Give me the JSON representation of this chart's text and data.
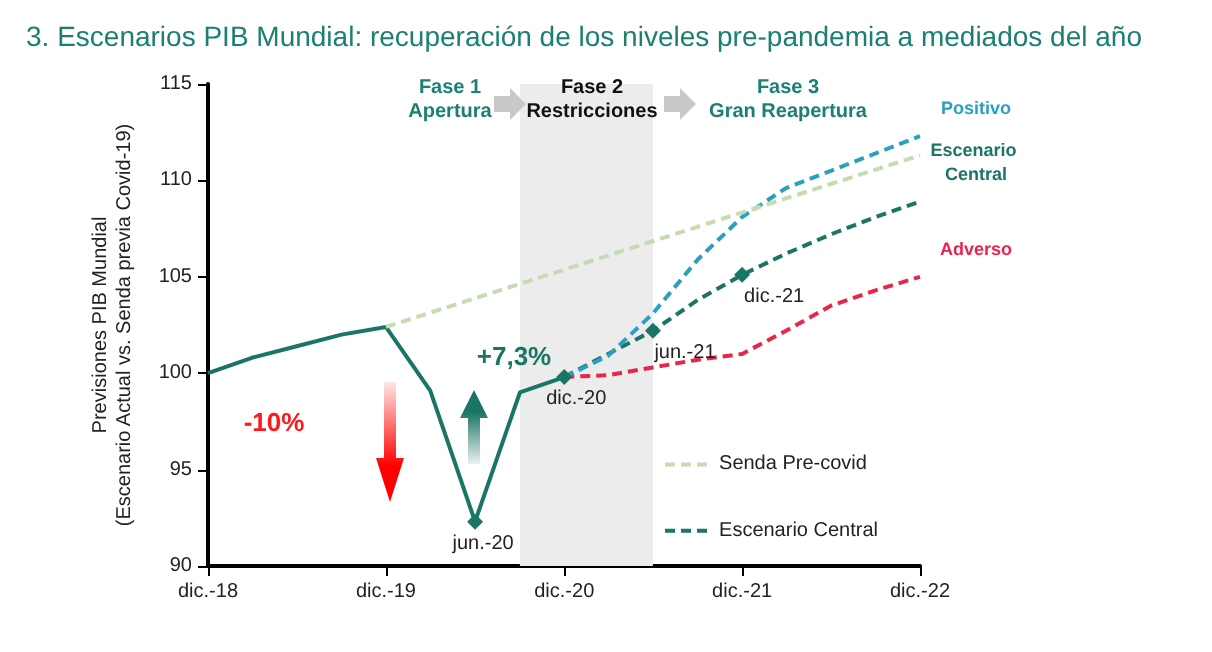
{
  "chart_data": {
    "type": "line",
    "title": "3. Escenarios PIB Mundial: recuperación de los niveles pre-pandemia a mediados del año",
    "ylabel": "Previsiones PIB Mundial\n(Escenario Actual vs. Senda previa Covid-19)",
    "xlim": [
      "2018-12",
      "2022-12"
    ],
    "xticks": [
      {
        "value": "2018-12",
        "label": "dic.-18"
      },
      {
        "value": "2019-12",
        "label": "dic.-19"
      },
      {
        "value": "2020-12",
        "label": "dic.-20"
      },
      {
        "value": "2021-12",
        "label": "dic.-21"
      },
      {
        "value": "2022-12",
        "label": "dic.-22"
      }
    ],
    "ylim": [
      90,
      115
    ],
    "yticks": [
      90,
      95,
      100,
      105,
      110,
      115
    ],
    "grid": false,
    "marker": "none",
    "legend": "bottom right",
    "series": [
      {
        "name": "Senda Pre-covid",
        "color": "#c5dcb0",
        "line_style": "dashed",
        "x": [
          "2019-12",
          "2022-12"
        ],
        "values": [
          102.4,
          111.3
        ]
      },
      {
        "color": "#1a7565",
        "line_style": "solid",
        "x": [
          "2018-12",
          "2019-03",
          "2019-06",
          "2019-09",
          "2019-12",
          "2020-03",
          "2020-06",
          "2020-09",
          "2020-12"
        ],
        "values": [
          100,
          100.8,
          101.4,
          102.0,
          102.4,
          99.1,
          92.3,
          99.0,
          99.8
        ]
      },
      {
        "color": "#2aa0c0",
        "line_style": "dashed",
        "x": [
          "2020-12",
          "2021-03",
          "2021-06",
          "2021-09",
          "2021-12",
          "2022-03",
          "2022-06",
          "2022-09",
          "2022-12"
        ],
        "values": [
          99.8,
          100.9,
          103.1,
          105.9,
          108.1,
          109.6,
          110.5,
          111.4,
          112.3
        ]
      },
      {
        "color": "#e8254a",
        "line_style": "dashed",
        "x": [
          "2020-12",
          "2021-03",
          "2021-06",
          "2021-09",
          "2021-12",
          "2022-03",
          "2022-06",
          "2022-09",
          "2022-12"
        ],
        "values": [
          99.8,
          99.9,
          100.3,
          100.7,
          101.0,
          102.2,
          103.5,
          104.3,
          105.0
        ]
      },
      {
        "name": "Escenario Central",
        "color": "#1a7565",
        "line_style": "dashed",
        "x": [
          "2020-12",
          "2021-03",
          "2021-06",
          "2021-09",
          "2021-12",
          "2022-03",
          "2022-06",
          "2022-09",
          "2022-12"
        ],
        "values": [
          99.8,
          101.0,
          102.2,
          103.8,
          105.1,
          106.2,
          107.2,
          108.1,
          108.9
        ]
      }
    ],
    "bands": [
      {
        "axis": "x",
        "from": "2020-09",
        "to": "2021-06",
        "color": "#ececec"
      }
    ],
    "annotations": [
      "Fase 1\nApertura",
      "Fase 2\nRestricciones",
      "Fase 3\nGran Reapertura",
      "-10%",
      "+7,3%",
      {
        "text": "jun.-20",
        "x": "2020-06",
        "y": 92.3
      },
      {
        "text": "dic.-20",
        "x": "2020-12",
        "y": 99.8
      },
      {
        "text": "jun.-21",
        "x": "2021-06",
        "y": 102.2
      },
      {
        "text": "dic.-21",
        "x": "2021-12",
        "y": 105.1
      },
      {
        "text": "Positivo",
        "x": "2022-12",
        "y": 112.3
      },
      {
        "text": "Escenario Central",
        "x": "2022-12",
        "y": 108.9
      },
      {
        "text": "Adverso",
        "x": "2022-12",
        "y": 105.0
      }
    ]
  }
}
